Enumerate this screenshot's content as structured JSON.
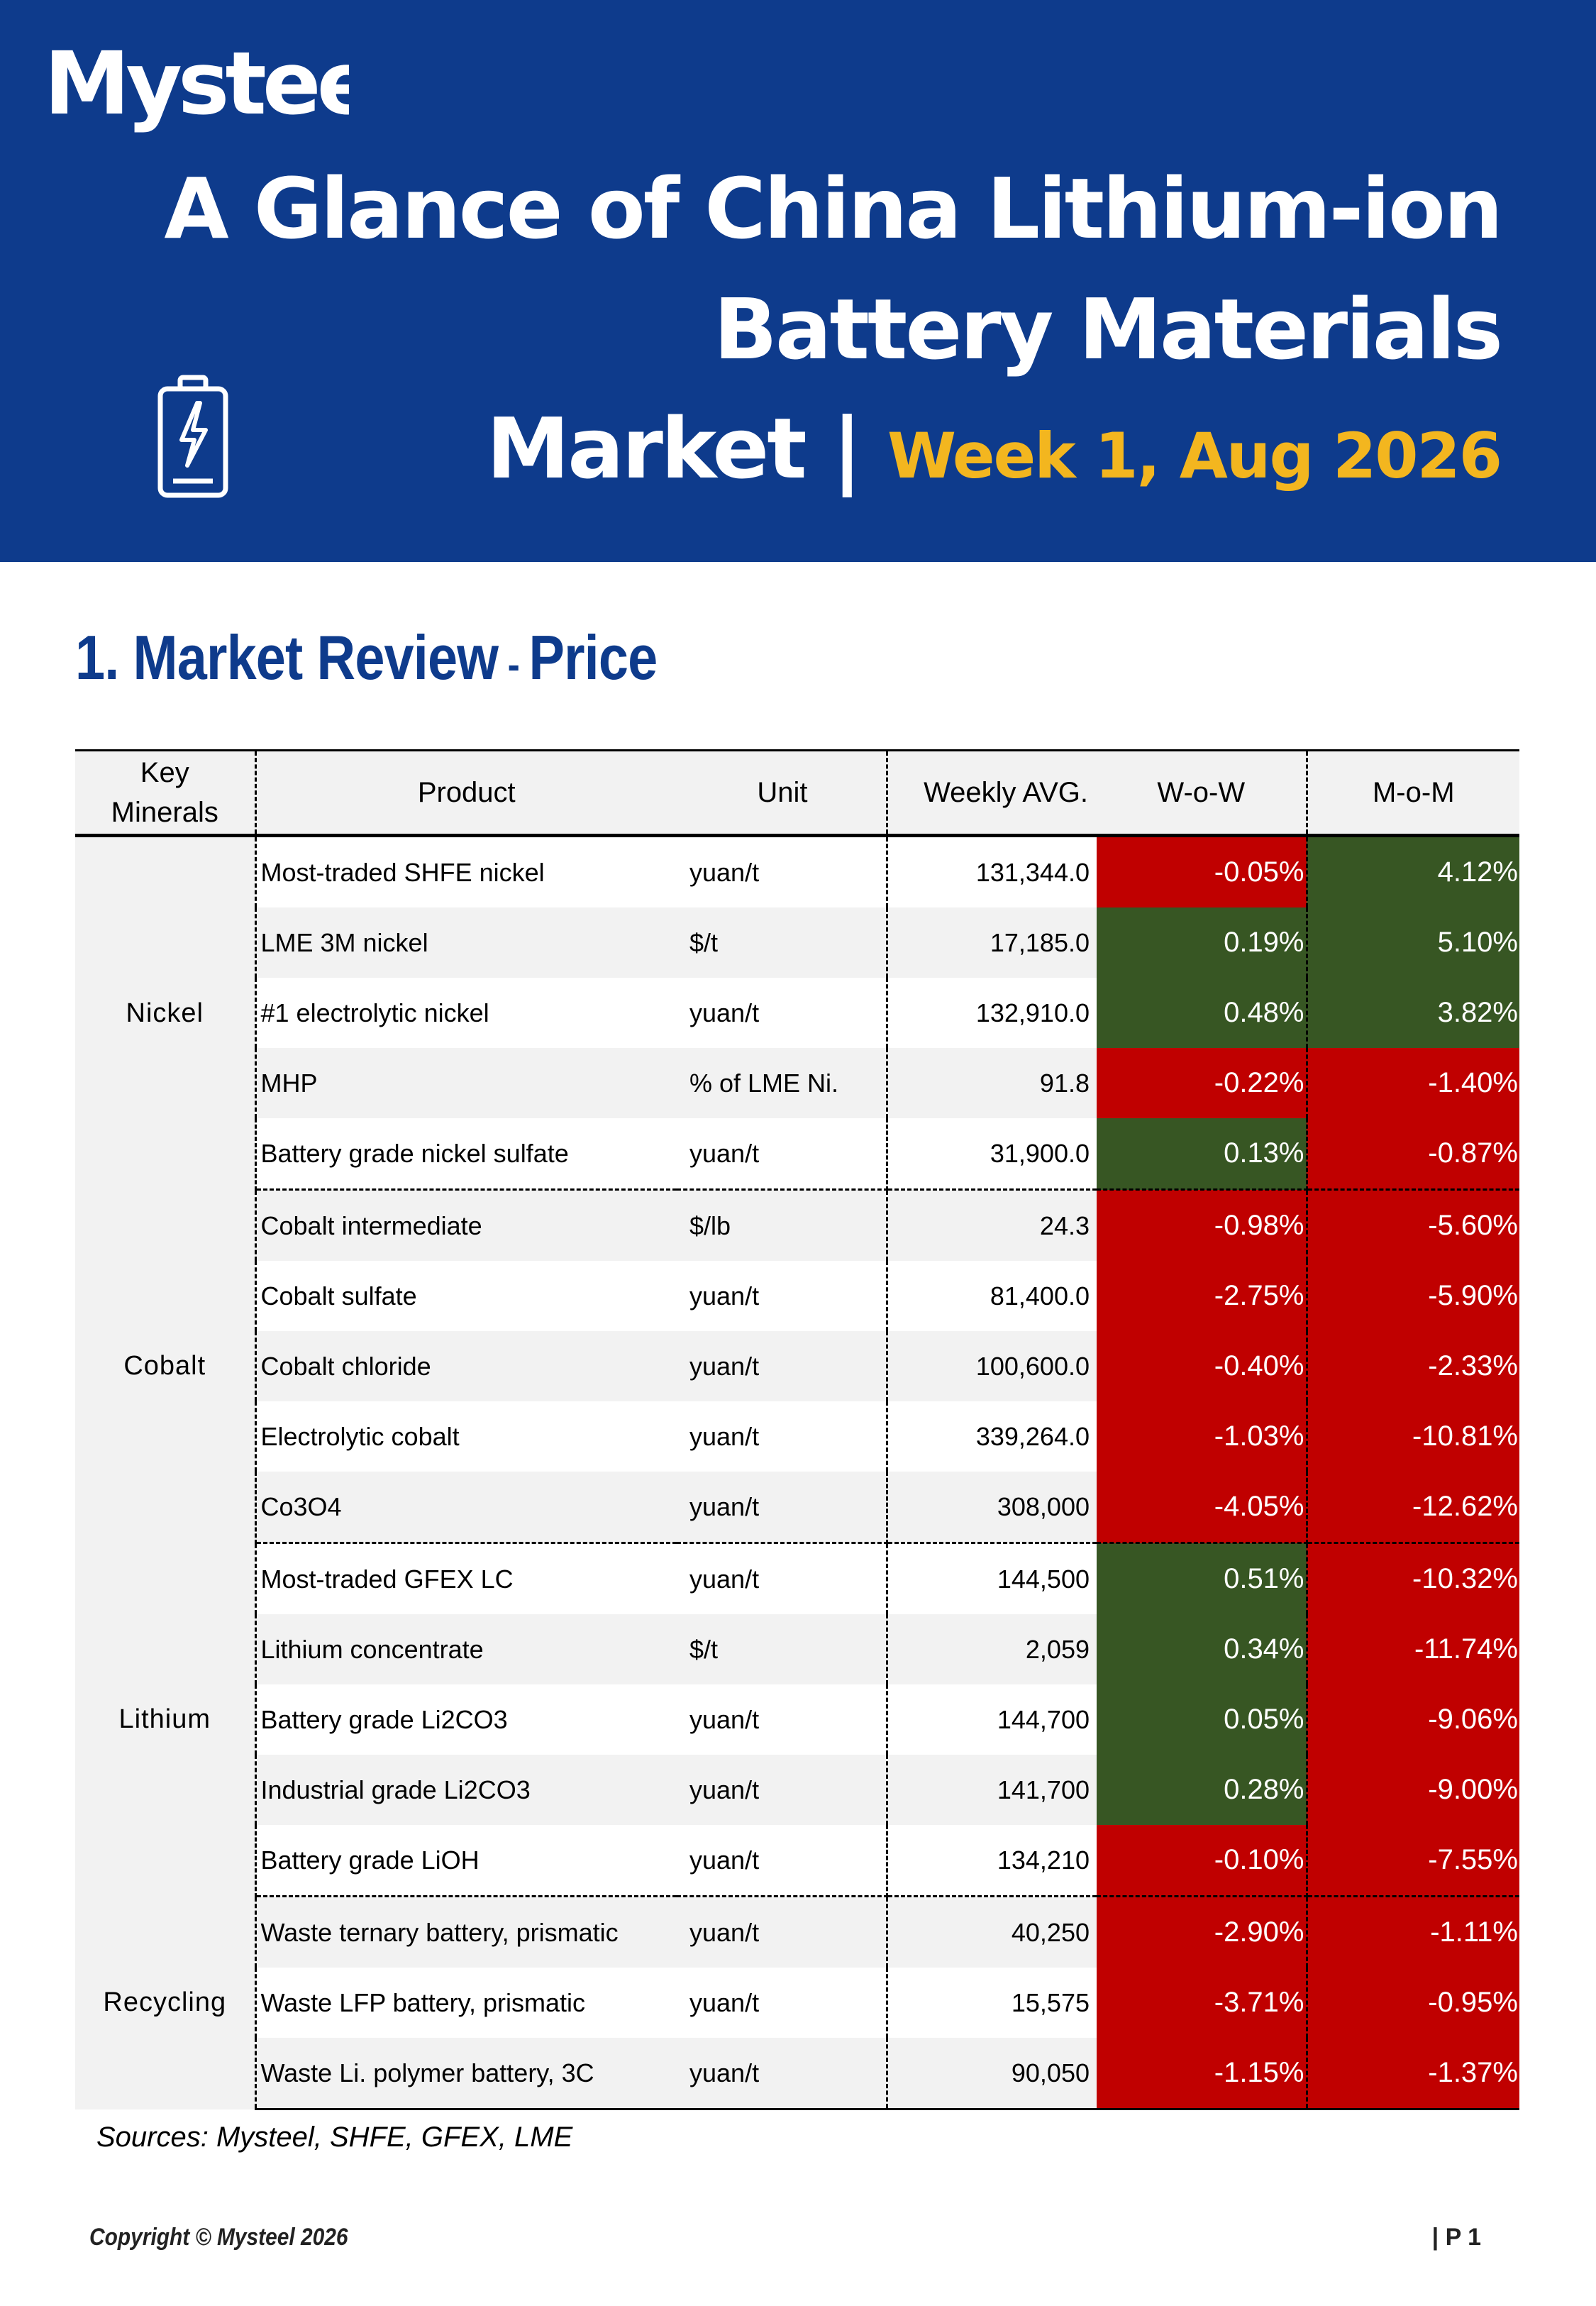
{
  "header": {
    "logo": "Mysteel",
    "title_line1": "A Glance of China Lithium-ion",
    "title_line2": "Battery Materials",
    "title_line3": "Market |",
    "week": "Week 1, Aug 2026",
    "icon": "battery-charging-icon",
    "colors": {
      "background": "#0e3b8c",
      "accent": "#f3b61f"
    }
  },
  "section": {
    "title": "1. Market Review",
    "dash": " - ",
    "subtitle": "Price"
  },
  "table": {
    "headers": {
      "key_minerals_line1": "Key",
      "key_minerals_line2": "Minerals",
      "product": "Product",
      "unit": "Unit",
      "weekly_avg": "Weekly AVG.",
      "wow": "W-o-W",
      "mom": "M-o-M"
    },
    "colors": {
      "negative": "#c00000",
      "positive": "#375623"
    },
    "groups": [
      {
        "mineral": "Nickel",
        "rows": [
          {
            "product": "Most-traded SHFE nickel",
            "unit": "yuan/t",
            "avg": "131,344.0",
            "wow": "-0.05%",
            "mom": "4.12%"
          },
          {
            "product": "LME 3M nickel",
            "unit": "$/t",
            "avg": "17,185.0",
            "wow": "0.19%",
            "mom": "5.10%"
          },
          {
            "product": "#1 electrolytic nickel",
            "unit": "yuan/t",
            "avg": "132,910.0",
            "wow": "0.48%",
            "mom": "3.82%"
          },
          {
            "product": "MHP",
            "unit": "% of LME Ni.",
            "avg": "91.8",
            "wow": "-0.22%",
            "mom": "-1.40%"
          },
          {
            "product": "Battery grade nickel sulfate",
            "unit": "yuan/t",
            "avg": "31,900.0",
            "wow": "0.13%",
            "mom": "-0.87%"
          }
        ]
      },
      {
        "mineral": "Cobalt",
        "rows": [
          {
            "product": "Cobalt intermediate",
            "unit": "$/lb",
            "avg": "24.3",
            "wow": "-0.98%",
            "mom": "-5.60%"
          },
          {
            "product": "Cobalt sulfate",
            "unit": "yuan/t",
            "avg": "81,400.0",
            "wow": "-2.75%",
            "mom": "-5.90%"
          },
          {
            "product": "Cobalt chloride",
            "unit": "yuan/t",
            "avg": "100,600.0",
            "wow": "-0.40%",
            "mom": "-2.33%"
          },
          {
            "product": "Electrolytic cobalt",
            "unit": "yuan/t",
            "avg": "339,264.0",
            "wow": "-1.03%",
            "mom": "-10.81%"
          },
          {
            "product": "Co3O4",
            "unit": "yuan/t",
            "avg": "308,000",
            "wow": "-4.05%",
            "mom": "-12.62%"
          }
        ]
      },
      {
        "mineral": "Lithium",
        "rows": [
          {
            "product": "Most-traded GFEX LC",
            "unit": "yuan/t",
            "avg": "144,500",
            "wow": "0.51%",
            "mom": "-10.32%"
          },
          {
            "product": "Lithium concentrate",
            "unit": "$/t",
            "avg": "2,059",
            "wow": "0.34%",
            "mom": "-11.74%"
          },
          {
            "product": "Battery grade Li2CO3",
            "unit": "yuan/t",
            "avg": "144,700",
            "wow": "0.05%",
            "mom": "-9.06%"
          },
          {
            "product": "Industrial grade Li2CO3",
            "unit": "yuan/t",
            "avg": "141,700",
            "wow": "0.28%",
            "mom": "-9.00%"
          },
          {
            "product": "Battery grade LiOH",
            "unit": "yuan/t",
            "avg": "134,210",
            "wow": "-0.10%",
            "mom": "-7.55%"
          }
        ]
      },
      {
        "mineral": "Recycling",
        "rows": [
          {
            "product": "Waste ternary battery, prismatic",
            "unit": "yuan/t",
            "avg": "40,250",
            "wow": "-2.90%",
            "mom": "-1.11%"
          },
          {
            "product": "Waste LFP battery, prismatic",
            "unit": "yuan/t",
            "avg": "15,575",
            "wow": "-3.71%",
            "mom": "-0.95%"
          },
          {
            "product": "Waste Li. polymer battery, 3C",
            "unit": "yuan/t",
            "avg": "90,050",
            "wow": "-1.15%",
            "mom": "-1.37%"
          }
        ]
      }
    ]
  },
  "footer": {
    "sources": "Sources: Mysteel, SHFE, GFEX, LME",
    "copyright": "Copyright © Mysteel 2026",
    "page": "| P 1"
  }
}
